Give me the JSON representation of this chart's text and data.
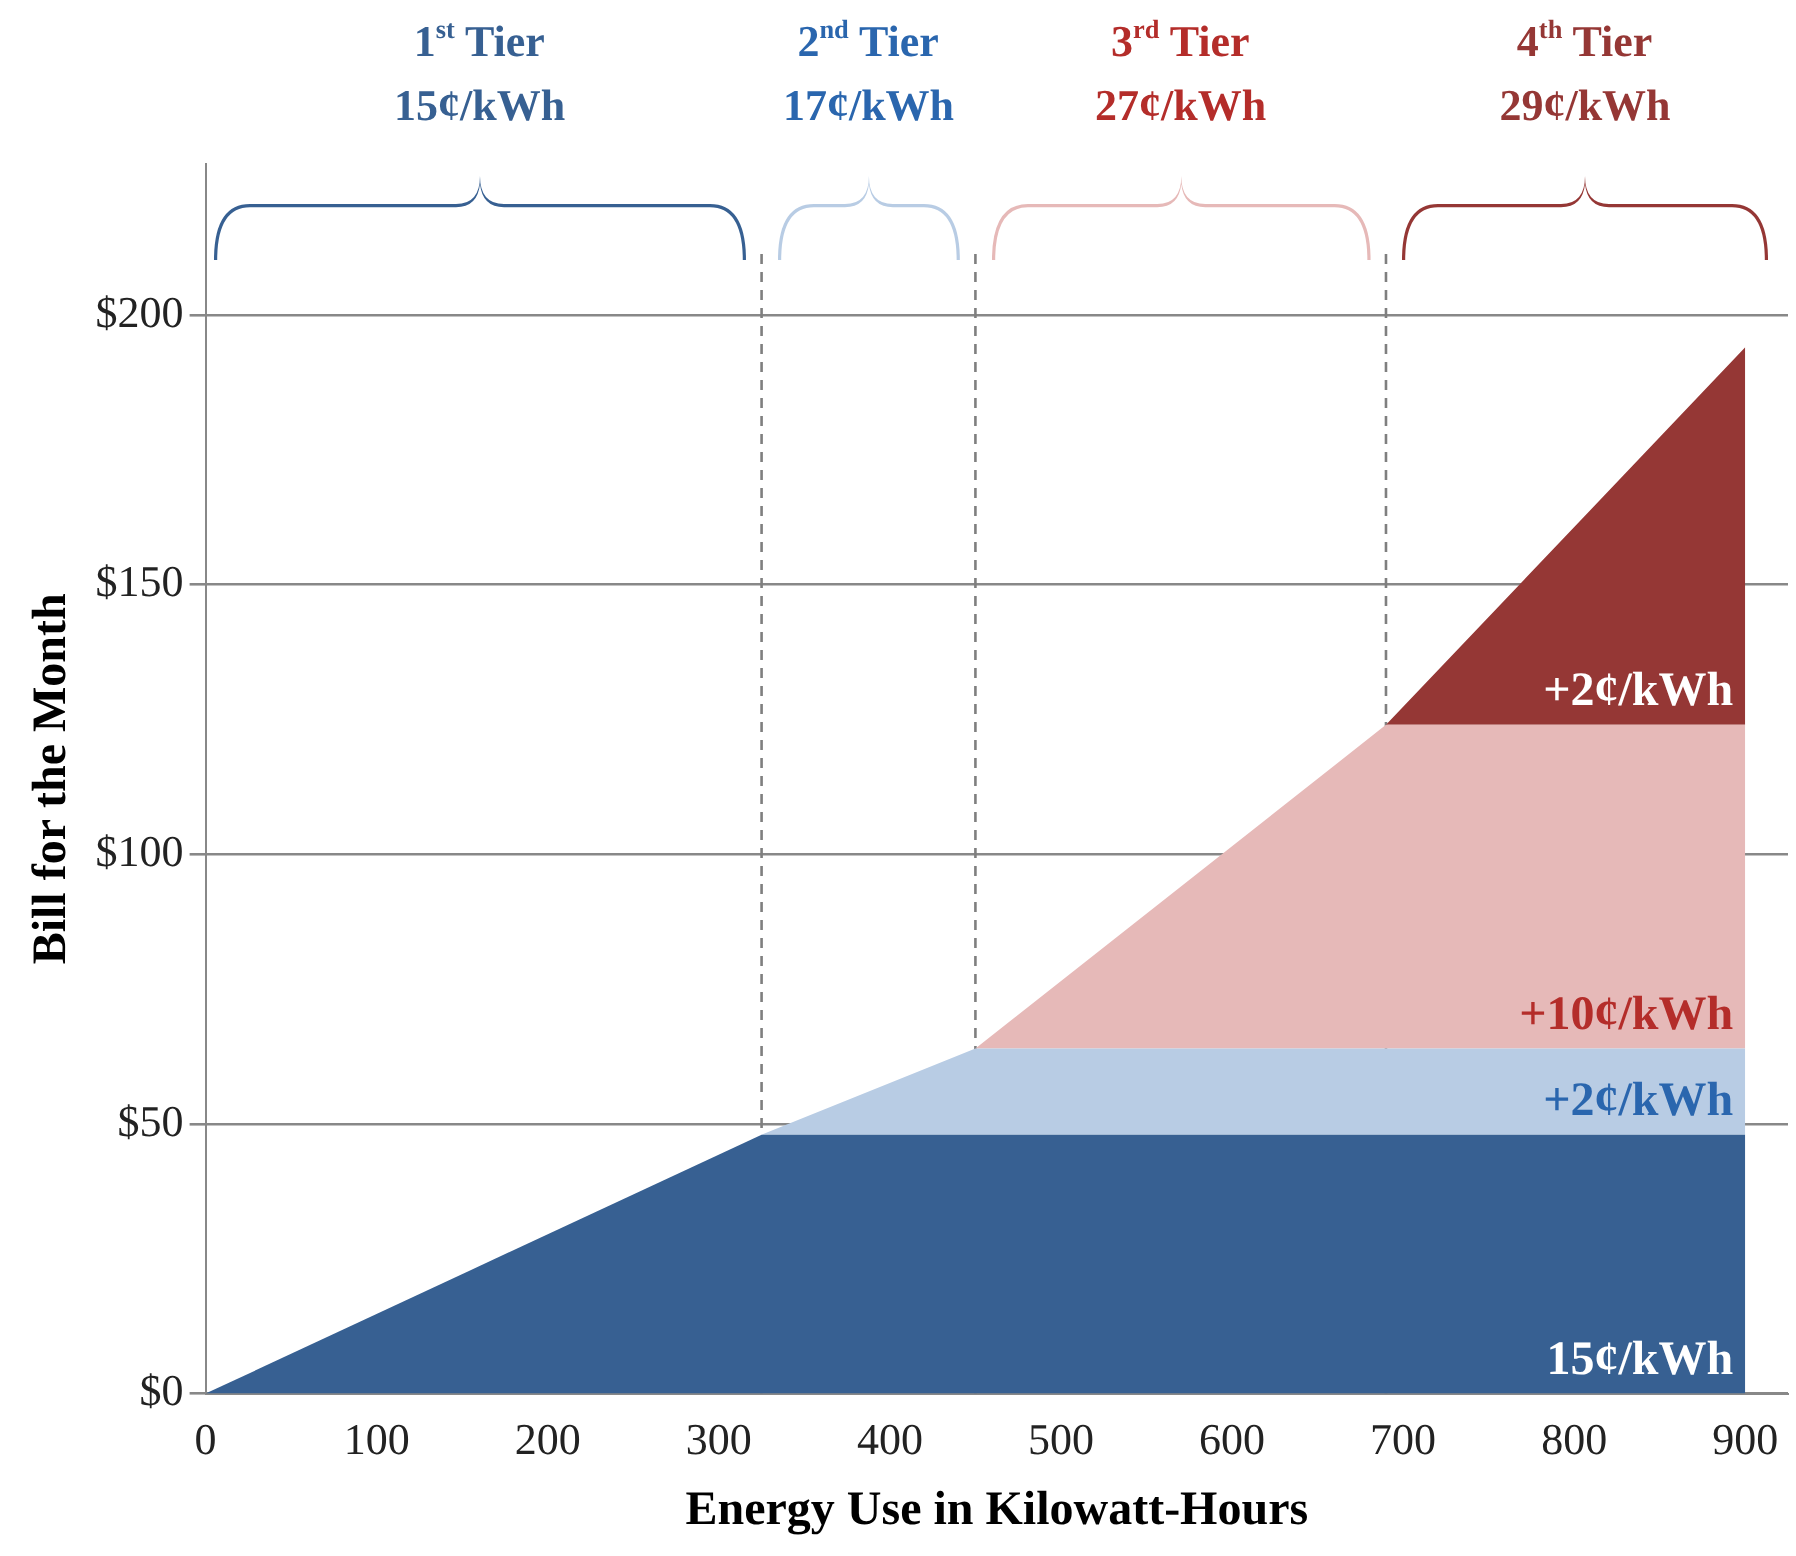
{
  "chart_data": {
    "type": "area",
    "stacked": true,
    "xlabel": "Energy Use in Kilowatt-Hours",
    "ylabel": "Bill for the Month",
    "x": [
      0,
      325,
      450,
      690,
      900
    ],
    "series": [
      {
        "name": "15¢/kWh",
        "color": "#376092",
        "values": [
          0,
          48,
          48,
          48,
          48
        ]
      },
      {
        "name": "+2¢/kWh",
        "color": "#b8cce4",
        "values": [
          0,
          0,
          16,
          16,
          16
        ]
      },
      {
        "name": "+10¢/kWh",
        "color": "#e6b9b8",
        "values": [
          0,
          0,
          0,
          60,
          60
        ]
      },
      {
        "name": "+2¢/kWh",
        "color": "#953735",
        "values": [
          0,
          0,
          0,
          0,
          70
        ]
      }
    ],
    "xlim": [
      0,
      925
    ],
    "xticks": [
      0,
      100,
      200,
      300,
      400,
      500,
      600,
      700,
      800,
      900
    ],
    "ylim": [
      0,
      228
    ],
    "yticks": [
      {
        "value": 0,
        "label": "$0"
      },
      {
        "value": 50,
        "label": "$50"
      },
      {
        "value": 100,
        "label": "$100"
      },
      {
        "value": 150,
        "label": "$150"
      },
      {
        "value": 200,
        "label": "$200"
      }
    ],
    "ref_lines": [
      {
        "axis": "x",
        "value": 325,
        "line_style": "dashed",
        "color": "#7f7f7f"
      },
      {
        "axis": "x",
        "value": 450,
        "line_style": "dashed",
        "color": "#7f7f7f"
      },
      {
        "axis": "x",
        "value": 690,
        "line_style": "dashed",
        "color": "#7f7f7f"
      }
    ],
    "annotations": [
      "1$^{st}$ Tier\n15¢/kWh",
      "2$^{nd}$ Tier\n17¢/kWh",
      "3$^{rd}$ Tier\n27¢/kWh",
      "4$^{th}$ Tier\n29¢/kWh"
    ],
    "grid": "y",
    "legend": false,
    "marker": "none"
  }
}
